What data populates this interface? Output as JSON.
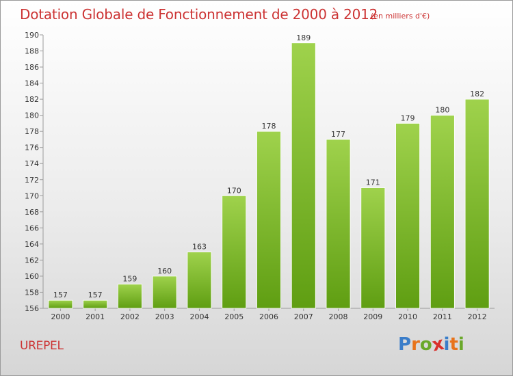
{
  "title": "Dotation Globale de Fonctionnement de 2000 à 2012",
  "unit_note": "(en milliers d'€)",
  "commune": "UREPEL",
  "logo": {
    "text": "Proxiti",
    "letter_colors": [
      "#3a7dc9",
      "#e8731a",
      "#6aa82a",
      "#d9302c",
      "#3a7dc9",
      "#e8731a",
      "#6aa82a"
    ]
  },
  "colors": {
    "bar_light": "#9fd24c",
    "bar_dark": "#5f9e12",
    "title": "#cc3333"
  },
  "chart_data": {
    "type": "bar",
    "title": "Dotation Globale de Fonctionnement de 2000 à 2012",
    "categories": [
      "2000",
      "2001",
      "2002",
      "2003",
      "2004",
      "2005",
      "2006",
      "2007",
      "2008",
      "2009",
      "2010",
      "2011",
      "2012"
    ],
    "values": [
      157,
      157,
      159,
      160,
      163,
      170,
      178,
      189,
      177,
      171,
      179,
      180,
      182
    ],
    "ylim": [
      156,
      190
    ],
    "yticks": [
      156,
      158,
      160,
      162,
      164,
      166,
      168,
      170,
      172,
      174,
      176,
      178,
      180,
      182,
      184,
      186,
      188,
      190
    ],
    "grid": false,
    "data_labels": true
  }
}
